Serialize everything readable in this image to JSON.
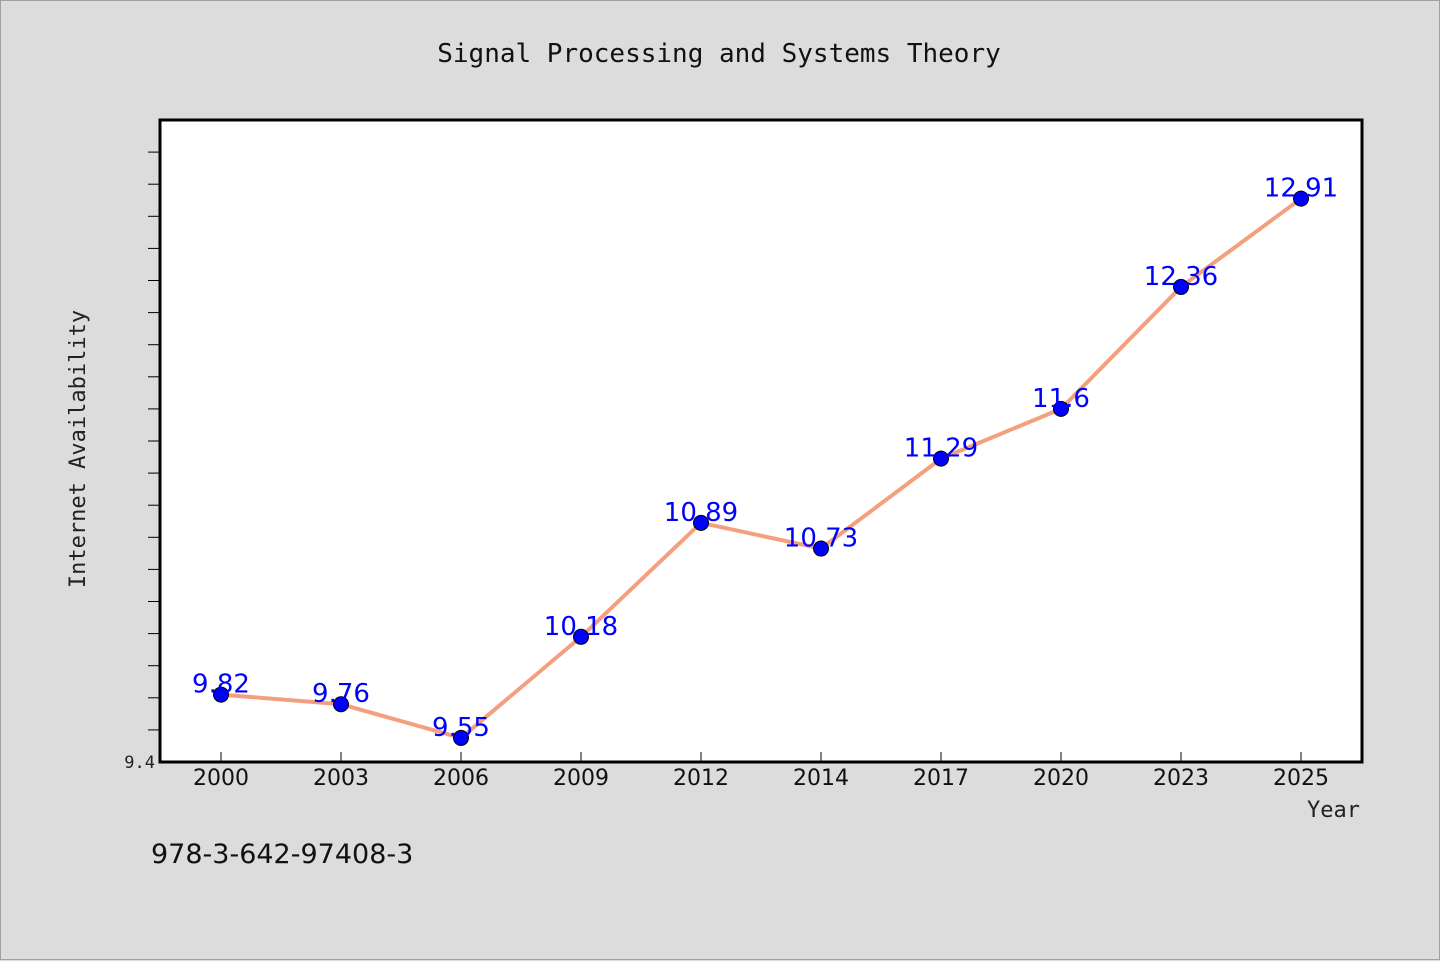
{
  "chart_data": {
    "type": "line",
    "title": "Signal Processing and Systems Theory",
    "xlabel": "Year",
    "ylabel": "Internet Availability",
    "categories": [
      "2000",
      "2003",
      "2006",
      "2009",
      "2012",
      "2014",
      "2017",
      "2020",
      "2023",
      "2025"
    ],
    "series": [
      {
        "values": [
          9.82,
          9.76,
          9.55,
          10.18,
          10.89,
          10.73,
          11.29,
          11.6,
          12.36,
          12.91
        ],
        "labels": [
          "9.82",
          "9.76",
          "9.55",
          "10.18",
          "10.89",
          "10.73",
          "11.29",
          "11.6",
          "12.36",
          "12.91"
        ]
      }
    ],
    "ylim": [
      9.4,
      13.4
    ],
    "yticks_labeled": [
      "9.4"
    ],
    "legend": "none",
    "grid": false,
    "colors": {
      "line": "#f4a07e",
      "marker": "#0000ff",
      "data_label": "#0000ff",
      "plot_bg": "#ffffff",
      "page_bg": "#dcdcdc"
    }
  },
  "isbn": "978-3-642-97408-3"
}
